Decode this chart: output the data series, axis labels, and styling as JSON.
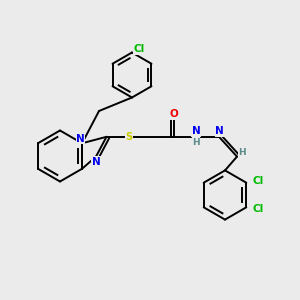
{
  "background_color": "#ebebeb",
  "figsize": [
    3.0,
    3.0
  ],
  "dpi": 100,
  "bond_color": "#000000",
  "atom_colors": {
    "N": "#0000ee",
    "S": "#cccc00",
    "O": "#ee0000",
    "Cl": "#00bb00",
    "H": "#5a8a8a",
    "C": "#000000"
  },
  "font_size": 7.5,
  "lw": 1.4
}
